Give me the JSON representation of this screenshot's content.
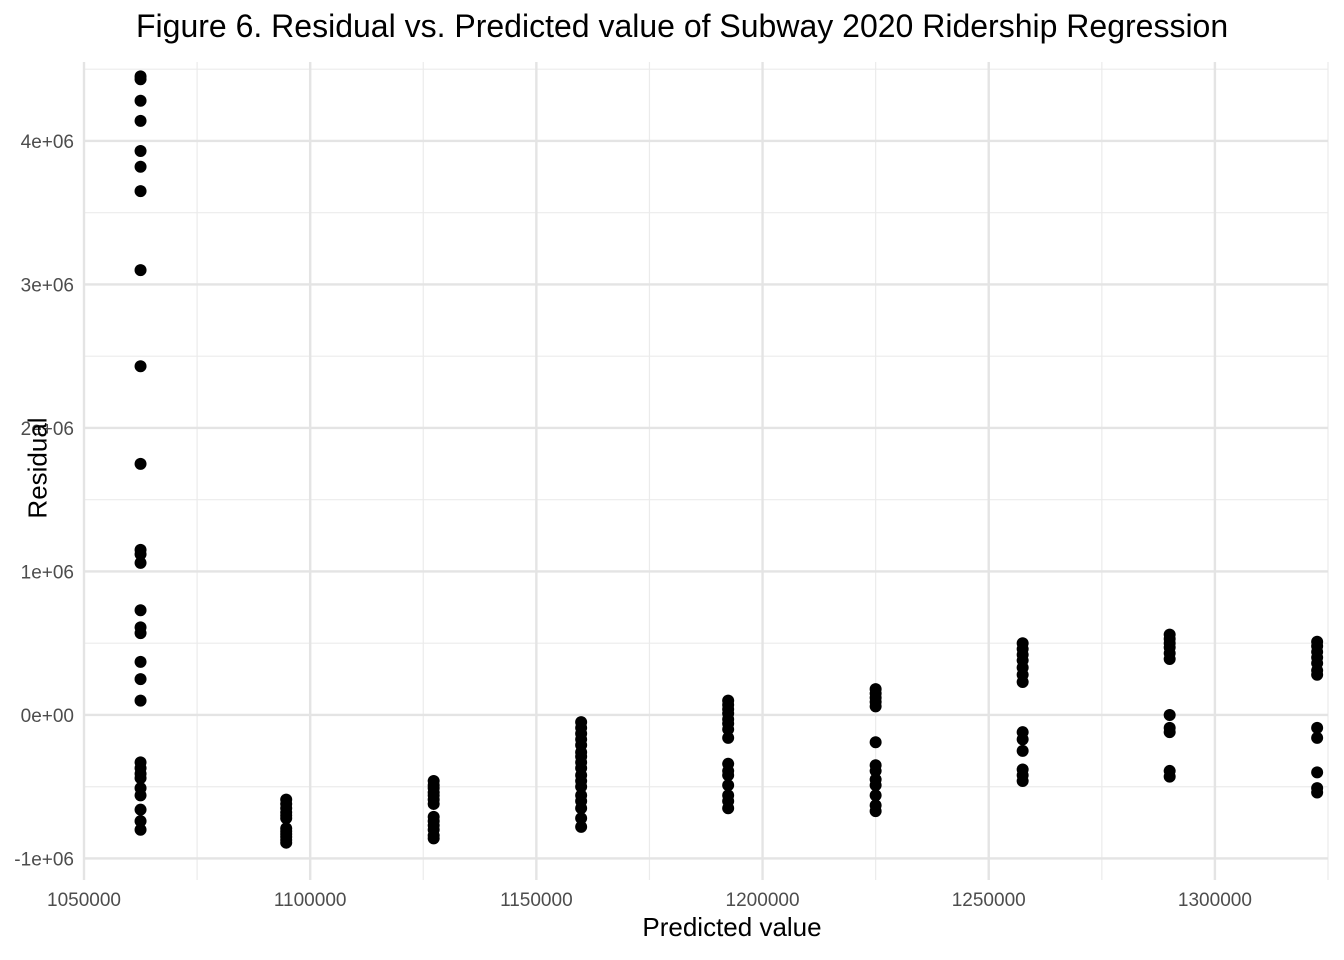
{
  "chart_data": {
    "type": "scatter",
    "title": "Figure 6. Residual vs. Predicted value of Subway 2020 Ridership Regression",
    "xlabel": "Predicted value",
    "ylabel": "Residual",
    "xlim": [
      1050000,
      1325000
    ],
    "ylim": [
      -1150000,
      4550000
    ],
    "x_ticks": [
      1050000,
      1100000,
      1150000,
      1200000,
      1250000,
      1300000
    ],
    "x_tick_labels": [
      "1050000",
      "1100000",
      "1150000",
      "1200000",
      "1250000",
      "1300000"
    ],
    "y_ticks": [
      -1000000,
      0,
      1000000,
      2000000,
      3000000,
      4000000
    ],
    "y_tick_labels": [
      "-1e+06",
      "0e+00",
      "1e+06",
      "2e+06",
      "3e+06",
      "4e+06"
    ],
    "grid": true,
    "point_color": "#000000",
    "series": [
      {
        "points": [
          [
            1062500,
            4450000
          ],
          [
            1062500,
            4430000
          ],
          [
            1062500,
            4280000
          ],
          [
            1062500,
            4140000
          ],
          [
            1062500,
            3930000
          ],
          [
            1062500,
            3820000
          ],
          [
            1062500,
            3650000
          ],
          [
            1062500,
            3100000
          ],
          [
            1062500,
            2430000
          ],
          [
            1062500,
            1750000
          ],
          [
            1062500,
            1150000
          ],
          [
            1062500,
            1120000
          ],
          [
            1062500,
            1060000
          ],
          [
            1062500,
            730000
          ],
          [
            1062500,
            610000
          ],
          [
            1062500,
            570000
          ],
          [
            1062500,
            370000
          ],
          [
            1062500,
            250000
          ],
          [
            1062500,
            100000
          ],
          [
            1062500,
            -330000
          ],
          [
            1062500,
            -370000
          ],
          [
            1062500,
            -410000
          ],
          [
            1062500,
            -440000
          ],
          [
            1062500,
            -510000
          ],
          [
            1062500,
            -560000
          ],
          [
            1062500,
            -660000
          ],
          [
            1062500,
            -740000
          ],
          [
            1062500,
            -800000
          ],
          [
            1094700,
            -590000
          ],
          [
            1094700,
            -620000
          ],
          [
            1094700,
            -650000
          ],
          [
            1094700,
            -680000
          ],
          [
            1094700,
            -700000
          ],
          [
            1094700,
            -720000
          ],
          [
            1094700,
            -790000
          ],
          [
            1094700,
            -810000
          ],
          [
            1094700,
            -830000
          ],
          [
            1094700,
            -850000
          ],
          [
            1094700,
            -870000
          ],
          [
            1094700,
            -890000
          ],
          [
            1127300,
            -460000
          ],
          [
            1127300,
            -490000
          ],
          [
            1127300,
            -510000
          ],
          [
            1127300,
            -540000
          ],
          [
            1127300,
            -560000
          ],
          [
            1127300,
            -590000
          ],
          [
            1127300,
            -620000
          ],
          [
            1127300,
            -710000
          ],
          [
            1127300,
            -740000
          ],
          [
            1127300,
            -770000
          ],
          [
            1127300,
            -800000
          ],
          [
            1127300,
            -840000
          ],
          [
            1127300,
            -860000
          ],
          [
            1159900,
            -50000
          ],
          [
            1159900,
            -90000
          ],
          [
            1159900,
            -130000
          ],
          [
            1159900,
            -170000
          ],
          [
            1159900,
            -210000
          ],
          [
            1159900,
            -260000
          ],
          [
            1159900,
            -290000
          ],
          [
            1159900,
            -330000
          ],
          [
            1159900,
            -370000
          ],
          [
            1159900,
            -420000
          ],
          [
            1159900,
            -460000
          ],
          [
            1159900,
            -500000
          ],
          [
            1159900,
            -560000
          ],
          [
            1159900,
            -600000
          ],
          [
            1159900,
            -650000
          ],
          [
            1159900,
            -720000
          ],
          [
            1159900,
            -780000
          ],
          [
            1192400,
            100000
          ],
          [
            1192400,
            70000
          ],
          [
            1192400,
            40000
          ],
          [
            1192400,
            10000
          ],
          [
            1192400,
            -30000
          ],
          [
            1192400,
            -60000
          ],
          [
            1192400,
            -100000
          ],
          [
            1192400,
            -160000
          ],
          [
            1192400,
            -340000
          ],
          [
            1192400,
            -390000
          ],
          [
            1192400,
            -420000
          ],
          [
            1192400,
            -490000
          ],
          [
            1192400,
            -560000
          ],
          [
            1192400,
            -600000
          ],
          [
            1192400,
            -650000
          ],
          [
            1225000,
            180000
          ],
          [
            1225000,
            150000
          ],
          [
            1225000,
            120000
          ],
          [
            1225000,
            90000
          ],
          [
            1225000,
            60000
          ],
          [
            1225000,
            -190000
          ],
          [
            1225000,
            -350000
          ],
          [
            1225000,
            -390000
          ],
          [
            1225000,
            -450000
          ],
          [
            1225000,
            -490000
          ],
          [
            1225000,
            -560000
          ],
          [
            1225000,
            -630000
          ],
          [
            1225000,
            -670000
          ],
          [
            1257500,
            500000
          ],
          [
            1257500,
            460000
          ],
          [
            1257500,
            420000
          ],
          [
            1257500,
            380000
          ],
          [
            1257500,
            330000
          ],
          [
            1257500,
            280000
          ],
          [
            1257500,
            230000
          ],
          [
            1257500,
            -120000
          ],
          [
            1257500,
            -170000
          ],
          [
            1257500,
            -250000
          ],
          [
            1257500,
            -380000
          ],
          [
            1257500,
            -420000
          ],
          [
            1257500,
            -460000
          ],
          [
            1290000,
            560000
          ],
          [
            1290000,
            530000
          ],
          [
            1290000,
            500000
          ],
          [
            1290000,
            470000
          ],
          [
            1290000,
            430000
          ],
          [
            1290000,
            390000
          ],
          [
            1290000,
            0
          ],
          [
            1290000,
            -90000
          ],
          [
            1290000,
            -120000
          ],
          [
            1290000,
            -390000
          ],
          [
            1290000,
            -430000
          ],
          [
            1322600,
            510000
          ],
          [
            1322600,
            480000
          ],
          [
            1322600,
            440000
          ],
          [
            1322600,
            400000
          ],
          [
            1322600,
            360000
          ],
          [
            1322600,
            310000
          ],
          [
            1322600,
            280000
          ],
          [
            1322600,
            -90000
          ],
          [
            1322600,
            -160000
          ],
          [
            1322600,
            -400000
          ],
          [
            1322600,
            -510000
          ],
          [
            1322600,
            -540000
          ]
        ]
      }
    ]
  }
}
